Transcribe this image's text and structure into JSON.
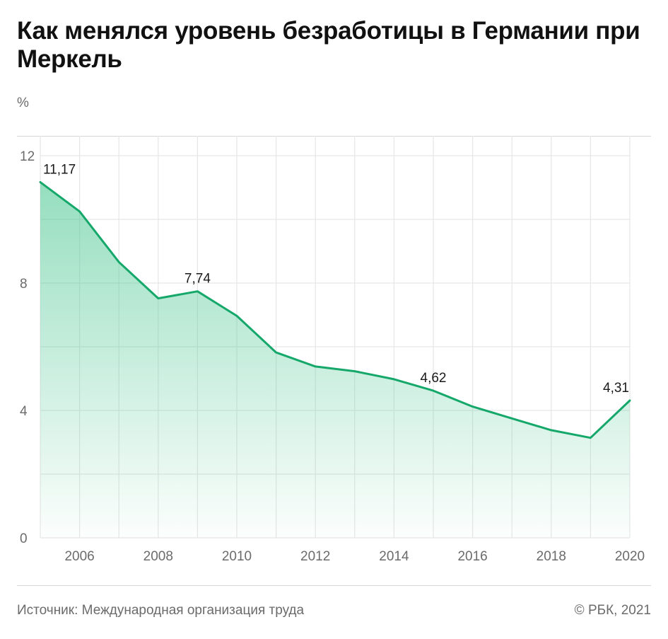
{
  "header": {
    "title": "Как менялся уровень безработицы в Германии при Меркель",
    "unit": "%"
  },
  "footer": {
    "source": "Источник: Международная организация труда",
    "copyright": "© РБК, 2021"
  },
  "colors": {
    "line": "#15a86a",
    "fill_top": "#4fc894",
    "grid": "#e6e6e6",
    "axis_text": "#6b6b6b"
  },
  "chart_data": {
    "type": "area",
    "title": "Как менялся уровень безработицы в Германии при Меркель",
    "ylabel": "%",
    "xlabel": "",
    "xlim": [
      2005,
      2020
    ],
    "ylim": [
      0,
      12
    ],
    "grid": true,
    "x": [
      2005,
      2006,
      2007,
      2008,
      2009,
      2010,
      2011,
      2012,
      2013,
      2014,
      2015,
      2016,
      2017,
      2018,
      2019,
      2020
    ],
    "values": [
      11.17,
      10.25,
      8.66,
      7.52,
      7.74,
      6.97,
      5.82,
      5.38,
      5.23,
      4.98,
      4.62,
      4.12,
      3.75,
      3.38,
      3.14,
      4.31
    ],
    "x_ticks": [
      2006,
      2008,
      2010,
      2012,
      2014,
      2016,
      2018,
      2020
    ],
    "y_ticks": [
      0,
      4,
      8,
      12
    ],
    "annotations": [
      {
        "x": 2005,
        "value": 11.17,
        "label": "11,17"
      },
      {
        "x": 2009,
        "value": 7.74,
        "label": "7,74"
      },
      {
        "x": 2015,
        "value": 4.62,
        "label": "4,62"
      },
      {
        "x": 2020,
        "value": 4.31,
        "label": "4,31"
      }
    ]
  }
}
